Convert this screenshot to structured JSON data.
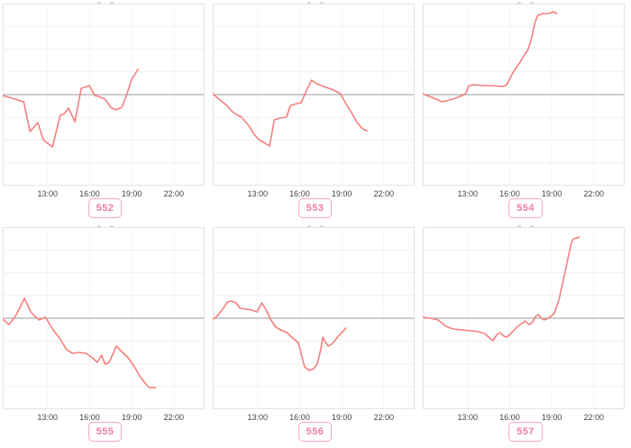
{
  "page": {
    "background": "#ffffff"
  },
  "colors": {
    "line": "#f57f7f",
    "baseline": "#9b9b9b",
    "grid_horizontal": "#f1f1f1",
    "grid_vertical": "#f5f5f5",
    "plot_border": "#e3e3e3",
    "tick_text": "#444444",
    "badge_border": "#f6a6c1",
    "badge_text": "#f07ba2"
  },
  "chart_data": [
    {
      "id": "552",
      "type": "line",
      "badge_label": "552",
      "title_clipped": true,
      "x_tick_labels": [
        "13:00",
        "16:00",
        "19:00",
        "22:00"
      ],
      "x_tick_hours": [
        13,
        16,
        19,
        22
      ],
      "x_range_hours": [
        9.8,
        24.2
      ],
      "y_range_relative": [
        -101,
        101
      ],
      "baseline_value": 0,
      "y_units": "relative",
      "grid_divisions": 8,
      "line_color": "#f57f7f",
      "points": [
        [
          9.8,
          -1
        ],
        [
          10.7,
          -5
        ],
        [
          11.3,
          -8
        ],
        [
          11.75,
          -41
        ],
        [
          12.3,
          -31
        ],
        [
          12.7,
          -50
        ],
        [
          13.0,
          -54
        ],
        [
          13.35,
          -58
        ],
        [
          13.9,
          -23
        ],
        [
          14.2,
          -21
        ],
        [
          14.5,
          -15
        ],
        [
          14.95,
          -30
        ],
        [
          15.4,
          7
        ],
        [
          15.8,
          9
        ],
        [
          16.0,
          10
        ],
        [
          16.35,
          -1
        ],
        [
          16.65,
          -2
        ],
        [
          17.1,
          -5
        ],
        [
          17.5,
          -14
        ],
        [
          17.85,
          -17
        ],
        [
          18.3,
          -14
        ],
        [
          18.6,
          -2
        ],
        [
          19.0,
          17
        ],
        [
          19.45,
          28
        ]
      ]
    },
    {
      "id": "553",
      "type": "line",
      "badge_label": "553",
      "title_clipped": true,
      "x_tick_labels": [
        "13:00",
        "16:00",
        "19:00",
        "22:00"
      ],
      "x_tick_hours": [
        13,
        16,
        19,
        22
      ],
      "x_range_hours": [
        9.8,
        24.2
      ],
      "y_range_relative": [
        -101,
        101
      ],
      "baseline_value": 0,
      "y_units": "relative",
      "grid_divisions": 8,
      "line_color": "#f57f7f",
      "points": [
        [
          9.8,
          1
        ],
        [
          10.25,
          -5
        ],
        [
          10.8,
          -12
        ],
        [
          11.2,
          -19
        ],
        [
          11.5,
          -22
        ],
        [
          11.85,
          -25
        ],
        [
          12.4,
          -35
        ],
        [
          12.8,
          -45
        ],
        [
          13.1,
          -50
        ],
        [
          13.55,
          -54
        ],
        [
          13.85,
          -57
        ],
        [
          14.2,
          -28
        ],
        [
          14.6,
          -26
        ],
        [
          15.05,
          -25
        ],
        [
          15.35,
          -12
        ],
        [
          15.8,
          -10
        ],
        [
          16.1,
          -9
        ],
        [
          16.5,
          5
        ],
        [
          16.85,
          16
        ],
        [
          17.25,
          12
        ],
        [
          17.7,
          9
        ],
        [
          18.1,
          7
        ],
        [
          18.55,
          4
        ],
        [
          18.9,
          1
        ],
        [
          19.3,
          -10
        ],
        [
          19.7,
          -20
        ],
        [
          20.1,
          -31
        ],
        [
          20.5,
          -38
        ],
        [
          20.8,
          -40
        ]
      ]
    },
    {
      "id": "554",
      "type": "line",
      "badge_label": "554",
      "title_clipped": true,
      "x_tick_labels": [
        "13:00",
        "16:00",
        "19:00",
        "22:00"
      ],
      "x_tick_hours": [
        13,
        16,
        19,
        22
      ],
      "x_range_hours": [
        9.8,
        24.2
      ],
      "y_range_relative": [
        -101,
        101
      ],
      "baseline_value": 0,
      "y_units": "relative",
      "grid_divisions": 8,
      "line_color": "#f57f7f",
      "points": [
        [
          9.8,
          1
        ],
        [
          10.45,
          -3
        ],
        [
          11.2,
          -8
        ],
        [
          11.95,
          -5
        ],
        [
          12.6,
          -1
        ],
        [
          12.85,
          1
        ],
        [
          13.1,
          10
        ],
        [
          13.45,
          11
        ],
        [
          14.1,
          10
        ],
        [
          14.85,
          10
        ],
        [
          15.5,
          9
        ],
        [
          15.8,
          11
        ],
        [
          16.25,
          25
        ],
        [
          16.7,
          35
        ],
        [
          17.0,
          43
        ],
        [
          17.3,
          50
        ],
        [
          17.55,
          62
        ],
        [
          17.8,
          80
        ],
        [
          18.0,
          88
        ],
        [
          18.4,
          90
        ],
        [
          18.8,
          90
        ],
        [
          19.1,
          92
        ],
        [
          19.35,
          90
        ]
      ]
    },
    {
      "id": "555",
      "type": "line",
      "badge_label": "555",
      "title_clipped": true,
      "x_tick_labels": [
        "13:00",
        "16:00",
        "19:00",
        "22:00"
      ],
      "x_tick_hours": [
        13,
        16,
        19,
        22
      ],
      "x_range_hours": [
        9.8,
        24.2
      ],
      "y_range_relative": [
        -101,
        101
      ],
      "baseline_value": 0,
      "y_units": "relative",
      "grid_divisions": 8,
      "line_color": "#f57f7f",
      "points": [
        [
          9.8,
          -1
        ],
        [
          10.25,
          -7
        ],
        [
          10.7,
          2
        ],
        [
          11.35,
          22
        ],
        [
          11.8,
          7
        ],
        [
          12.1,
          2
        ],
        [
          12.4,
          -2
        ],
        [
          12.85,
          1
        ],
        [
          13.4,
          -13
        ],
        [
          13.9,
          -23
        ],
        [
          14.35,
          -35
        ],
        [
          14.8,
          -39
        ],
        [
          15.25,
          -38
        ],
        [
          15.75,
          -39
        ],
        [
          16.2,
          -44
        ],
        [
          16.55,
          -49
        ],
        [
          16.85,
          -41
        ],
        [
          17.1,
          -51
        ],
        [
          17.4,
          -49
        ],
        [
          17.9,
          -31
        ],
        [
          18.35,
          -38
        ],
        [
          18.75,
          -44
        ],
        [
          19.2,
          -54
        ],
        [
          19.6,
          -65
        ],
        [
          19.95,
          -72
        ],
        [
          20.25,
          -77
        ],
        [
          20.7,
          -77
        ]
      ]
    },
    {
      "id": "556",
      "type": "line",
      "badge_label": "556",
      "title_clipped": true,
      "x_tick_labels": [
        "13:00",
        "16:00",
        "19:00",
        "22:00"
      ],
      "x_tick_hours": [
        13,
        16,
        19,
        22
      ],
      "x_range_hours": [
        9.8,
        24.2
      ],
      "y_range_relative": [
        -101,
        101
      ],
      "baseline_value": 0,
      "y_units": "relative",
      "grid_divisions": 8,
      "line_color": "#f57f7f",
      "points": [
        [
          9.8,
          -1
        ],
        [
          10.1,
          2
        ],
        [
          10.5,
          10
        ],
        [
          10.85,
          18
        ],
        [
          11.15,
          19
        ],
        [
          11.45,
          17
        ],
        [
          11.75,
          11
        ],
        [
          12.2,
          10
        ],
        [
          12.6,
          9
        ],
        [
          12.95,
          7
        ],
        [
          13.3,
          17
        ],
        [
          13.65,
          8
        ],
        [
          13.95,
          -2
        ],
        [
          14.3,
          -10
        ],
        [
          14.65,
          -13
        ],
        [
          15.1,
          -16
        ],
        [
          15.5,
          -22
        ],
        [
          15.9,
          -27
        ],
        [
          16.15,
          -42
        ],
        [
          16.35,
          -54
        ],
        [
          16.7,
          -58
        ],
        [
          17.0,
          -56
        ],
        [
          17.25,
          -51
        ],
        [
          17.5,
          -35
        ],
        [
          17.65,
          -21
        ],
        [
          17.85,
          -27
        ],
        [
          18.05,
          -31
        ],
        [
          18.35,
          -28
        ],
        [
          18.7,
          -21
        ],
        [
          19.0,
          -16
        ],
        [
          19.3,
          -11
        ]
      ]
    },
    {
      "id": "557",
      "type": "line",
      "badge_label": "557",
      "title_clipped": true,
      "x_tick_labels": [
        "13:00",
        "16:00",
        "19:00",
        "22:00"
      ],
      "x_tick_hours": [
        13,
        16,
        19,
        22
      ],
      "x_range_hours": [
        9.8,
        24.2
      ],
      "y_range_relative": [
        -101,
        101
      ],
      "baseline_value": 0,
      "y_units": "relative",
      "grid_divisions": 8,
      "line_color": "#f57f7f",
      "points": [
        [
          9.8,
          1
        ],
        [
          10.35,
          0
        ],
        [
          10.9,
          -2
        ],
        [
          11.45,
          -9
        ],
        [
          11.95,
          -12
        ],
        [
          12.6,
          -13
        ],
        [
          13.25,
          -14
        ],
        [
          13.8,
          -15
        ],
        [
          14.2,
          -17
        ],
        [
          14.5,
          -21
        ],
        [
          14.8,
          -25
        ],
        [
          15.1,
          -18
        ],
        [
          15.3,
          -16
        ],
        [
          15.6,
          -20
        ],
        [
          15.8,
          -21
        ],
        [
          16.15,
          -16
        ],
        [
          16.5,
          -10
        ],
        [
          16.85,
          -6
        ],
        [
          17.1,
          -3
        ],
        [
          17.35,
          -7
        ],
        [
          17.6,
          -5
        ],
        [
          17.85,
          2
        ],
        [
          18.05,
          4
        ],
        [
          18.25,
          0
        ],
        [
          18.45,
          -2
        ],
        [
          18.75,
          0
        ],
        [
          19.0,
          3
        ],
        [
          19.2,
          6
        ],
        [
          19.5,
          20
        ],
        [
          19.75,
          37
        ],
        [
          20.0,
          55
        ],
        [
          20.2,
          70
        ],
        [
          20.4,
          84
        ],
        [
          20.55,
          88
        ],
        [
          20.8,
          89
        ],
        [
          20.95,
          90
        ]
      ]
    }
  ]
}
